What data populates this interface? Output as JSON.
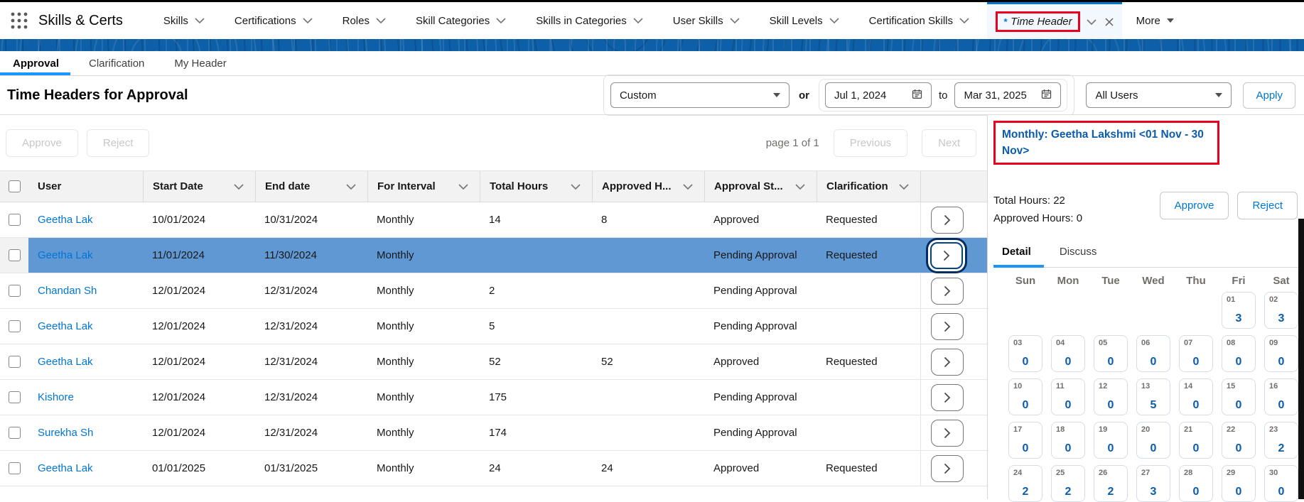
{
  "colors": {
    "brand_blue": "#0176d3",
    "band_blue": "#0d60a8",
    "selected_row_blue": "#6098d4",
    "annotation_red": "#ea001e",
    "calendar_value_blue": "#0b5cab",
    "subtab_underline_blue": "#1b96ff"
  },
  "nav": {
    "app_name": "Skills & Certs",
    "items": [
      "Skills",
      "Certifications",
      "Roles",
      "Skill Categories",
      "Skills in Categories",
      "User Skills",
      "Skill Levels",
      "Certification Skills"
    ],
    "active_tab": {
      "prefix": "*",
      "label": "Time Header"
    },
    "more_label": "More"
  },
  "subtabs": [
    {
      "label": "Approval",
      "active": true
    },
    {
      "label": "Clarification",
      "active": false
    },
    {
      "label": "My Header",
      "active": false
    }
  ],
  "page": {
    "title": "Time Headers for Approval"
  },
  "filters": {
    "range_select_value": "Custom",
    "or_label": "or",
    "date_from_value": "Jul 1, 2024",
    "to_label": "to",
    "date_to_value": "Mar 31, 2025",
    "users_select_value": "All Users",
    "apply_label": "Apply"
  },
  "toolbar": {
    "approve_label": "Approve",
    "reject_label": "Reject",
    "page_indicator": "page 1 of 1",
    "previous_label": "Previous",
    "next_label": "Next"
  },
  "table": {
    "columns": [
      {
        "label": "User",
        "sortable": false
      },
      {
        "label": "Start Date",
        "sortable": true
      },
      {
        "label": "End date",
        "sortable": true
      },
      {
        "label": "For Interval",
        "sortable": true
      },
      {
        "label": "Total Hours",
        "sortable": true
      },
      {
        "label": "Approved H...",
        "sortable": true
      },
      {
        "label": "Approval St...",
        "sortable": true
      },
      {
        "label": "Clarification",
        "sortable": true
      }
    ],
    "rows": [
      {
        "user": "Geetha Lak",
        "start_date": "10/01/2024",
        "end_date": "10/31/2024",
        "interval": "Monthly",
        "total_hours": "14",
        "approved_hours": "8",
        "status": "Approved",
        "clarification": "Requested",
        "selected": false
      },
      {
        "user": "Geetha Lak",
        "start_date": "11/01/2024",
        "end_date": "11/30/2024",
        "interval": "Monthly",
        "total_hours": "",
        "approved_hours": "",
        "status": "Pending Approval",
        "clarification": "Requested",
        "selected": true
      },
      {
        "user": "Chandan Sh",
        "start_date": "12/01/2024",
        "end_date": "12/31/2024",
        "interval": "Monthly",
        "total_hours": "2",
        "approved_hours": "",
        "status": "Pending Approval",
        "clarification": "",
        "selected": false
      },
      {
        "user": "Geetha Lak",
        "start_date": "12/01/2024",
        "end_date": "12/31/2024",
        "interval": "Monthly",
        "total_hours": "5",
        "approved_hours": "",
        "status": "Pending Approval",
        "clarification": "",
        "selected": false
      },
      {
        "user": "Geetha Lak",
        "start_date": "12/01/2024",
        "end_date": "12/31/2024",
        "interval": "Monthly",
        "total_hours": "52",
        "approved_hours": "52",
        "status": "Approved",
        "clarification": "Requested",
        "selected": false
      },
      {
        "user": "Kishore",
        "start_date": "12/01/2024",
        "end_date": "12/31/2024",
        "interval": "Monthly",
        "total_hours": "175",
        "approved_hours": "",
        "status": "Pending Approval",
        "clarification": "",
        "selected": false
      },
      {
        "user": "Surekha Sh",
        "start_date": "12/01/2024",
        "end_date": "12/31/2024",
        "interval": "Monthly",
        "total_hours": "174",
        "approved_hours": "",
        "status": "Pending Approval",
        "clarification": "",
        "selected": false
      },
      {
        "user": "Geetha Lak",
        "start_date": "01/01/2025",
        "end_date": "01/31/2025",
        "interval": "Monthly",
        "total_hours": "24",
        "approved_hours": "24",
        "status": "Approved",
        "clarification": "Requested",
        "selected": false
      }
    ]
  },
  "detail_panel": {
    "title": "Monthly: Geetha Lakshmi <01 Nov - 30 Nov>",
    "total_hours_label": "Total Hours: 22",
    "approved_hours_label": "Approved Hours: 0",
    "approve_label": "Approve",
    "reject_label": "Reject",
    "tabs": [
      {
        "label": "Detail",
        "active": true
      },
      {
        "label": "Discuss",
        "active": false
      }
    ],
    "calendar": {
      "day_headers": [
        "Sun",
        "Mon",
        "Tue",
        "Wed",
        "Thu",
        "Fri",
        "Sat"
      ],
      "weeks": [
        [
          null,
          null,
          null,
          null,
          null,
          {
            "day": "01",
            "hours": "3"
          },
          {
            "day": "02",
            "hours": "3"
          }
        ],
        [
          {
            "day": "03",
            "hours": "0"
          },
          {
            "day": "04",
            "hours": "0"
          },
          {
            "day": "05",
            "hours": "0"
          },
          {
            "day": "06",
            "hours": "0"
          },
          {
            "day": "07",
            "hours": "0"
          },
          {
            "day": "08",
            "hours": "0"
          },
          {
            "day": "09",
            "hours": "0"
          }
        ],
        [
          {
            "day": "10",
            "hours": "0"
          },
          {
            "day": "11",
            "hours": "0"
          },
          {
            "day": "12",
            "hours": "0"
          },
          {
            "day": "13",
            "hours": "5"
          },
          {
            "day": "14",
            "hours": "0"
          },
          {
            "day": "15",
            "hours": "0"
          },
          {
            "day": "16",
            "hours": "0"
          }
        ],
        [
          {
            "day": "17",
            "hours": "0"
          },
          {
            "day": "18",
            "hours": "0"
          },
          {
            "day": "19",
            "hours": "0"
          },
          {
            "day": "20",
            "hours": "0"
          },
          {
            "day": "21",
            "hours": "0"
          },
          {
            "day": "22",
            "hours": "0"
          },
          {
            "day": "23",
            "hours": "2"
          }
        ],
        [
          {
            "day": "24",
            "hours": "2"
          },
          {
            "day": "25",
            "hours": "2"
          },
          {
            "day": "26",
            "hours": "2"
          },
          {
            "day": "27",
            "hours": "3"
          },
          {
            "day": "28",
            "hours": "0"
          },
          {
            "day": "29",
            "hours": "0"
          },
          {
            "day": "30",
            "hours": "0"
          }
        ]
      ]
    }
  }
}
